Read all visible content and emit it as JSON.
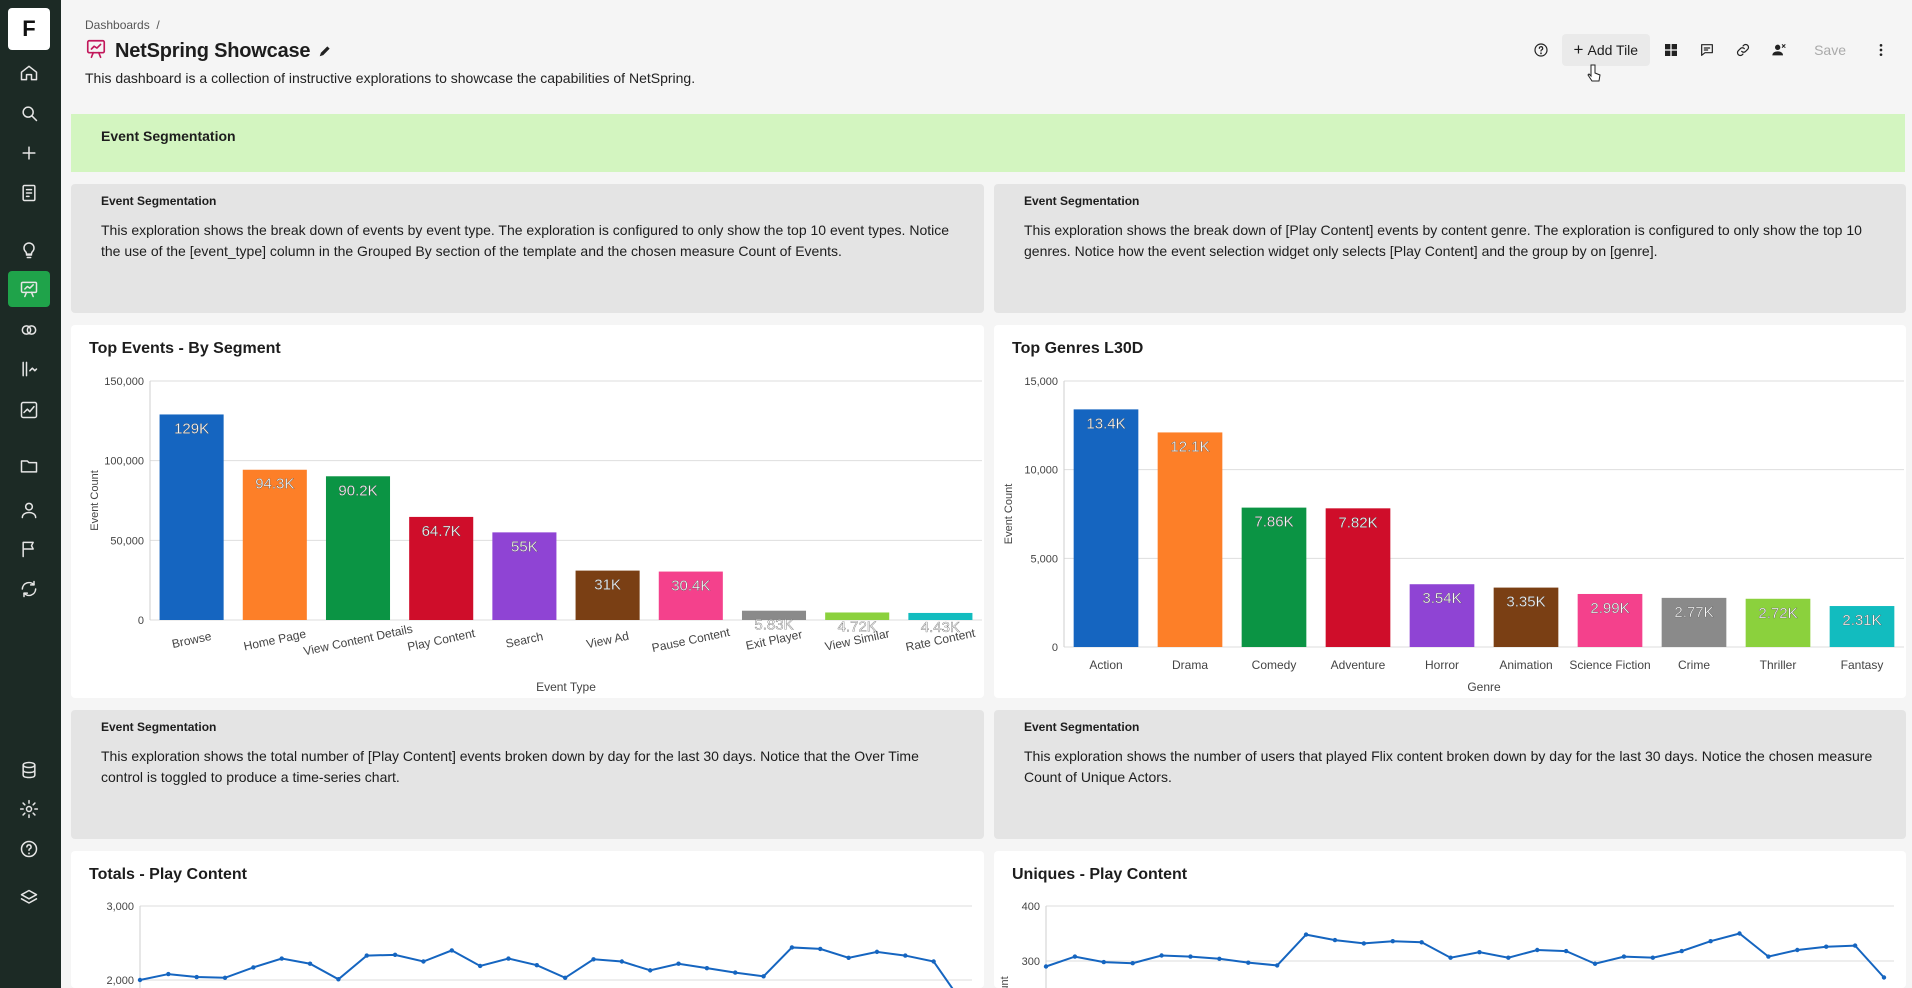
{
  "app": {
    "logo_letter": "F",
    "brand_color": "#1fa34a"
  },
  "sidebar": {
    "items": [
      {
        "icon": "home-icon"
      },
      {
        "icon": "search-icon"
      },
      {
        "icon": "plus-icon"
      },
      {
        "icon": "notebook-icon"
      },
      {
        "icon": "lightbulb-icon"
      },
      {
        "icon": "dashboard-icon",
        "active": true
      },
      {
        "icon": "rings-icon"
      },
      {
        "icon": "funnel-icon"
      },
      {
        "icon": "chart-line-icon"
      },
      {
        "icon": "folder-icon"
      },
      {
        "icon": "user-icon"
      },
      {
        "icon": "flag-icon"
      },
      {
        "icon": "workflow-icon"
      },
      {
        "icon": "database-icon"
      },
      {
        "icon": "gear-icon"
      },
      {
        "icon": "help-icon"
      },
      {
        "icon": "layers-icon"
      }
    ]
  },
  "breadcrumb": {
    "root": "Dashboards",
    "separator": "/"
  },
  "header": {
    "title": "NetSpring Showcase",
    "description": "This dashboard is a collection of instructive explorations to showcase the capabilities of NetSpring."
  },
  "toolbar": {
    "add_tile_label": "Add Tile",
    "save_label": "Save"
  },
  "section": {
    "title": "Event Segmentation"
  },
  "text_cards": [
    {
      "header": "Event Segmentation",
      "body": "This exploration shows the break down of events by event type. The exploration is configured to only show the top 10 event types. Notice the use of the [event_type] column in the Grouped By section of the template and the chosen measure Count of Events."
    },
    {
      "header": "Event Segmentation",
      "body": "This exploration shows the break down of [Play Content] events by content genre. The exploration is configured to only show the top 10 genres. Notice how the event selection widget only selects [Play Content] and the group by on [genre]."
    },
    {
      "header": "Event Segmentation",
      "body": "This exploration shows the total number of [Play Content] events broken down by day for the last 30 days. Notice that the Over Time control is toggled to produce a time-series chart."
    },
    {
      "header": "Event Segmentation",
      "body": "This exploration shows the number of users that played Flix content broken down by day for the last 30 days. Notice the chosen measure Count of Unique Actors."
    }
  ],
  "chart_data": [
    {
      "type": "bar",
      "title": "Top Events - By Segment",
      "xlabel": "Event Type",
      "ylabel": "Event Count",
      "ylim": [
        0,
        150000
      ],
      "yticks": [
        "0",
        "50,000",
        "100,000",
        "150,000"
      ],
      "categories": [
        "Browse",
        "Home Page",
        "View Content Details",
        "Play Content",
        "Search",
        "View Ad",
        "Pause Content",
        "Exit Player",
        "View Similar",
        "Rate Content"
      ],
      "values": [
        129000,
        94300,
        90200,
        64700,
        55000,
        31000,
        30400,
        5830,
        4720,
        4430
      ],
      "labels": [
        "129K",
        "94.3K",
        "90.2K",
        "64.7K",
        "55K",
        "31K",
        "30.4K",
        "5.83K",
        "4.72K",
        "4.43K"
      ],
      "colors": [
        "#1565c0",
        "#fd7f28",
        "#0b9444",
        "#cf0d2a",
        "#8f44d4",
        "#7a3f14",
        "#f4418c",
        "#8a8a8a",
        "#8bd13d",
        "#12bcbf"
      ],
      "grid": true
    },
    {
      "type": "bar",
      "title": "Top Genres L30D",
      "xlabel": "Genre",
      "ylabel": "Event Count",
      "ylim": [
        0,
        15000
      ],
      "yticks": [
        "0",
        "5,000",
        "10,000",
        "15,000"
      ],
      "categories": [
        "Action",
        "Drama",
        "Comedy",
        "Adventure",
        "Horror",
        "Animation",
        "Science Fiction",
        "Crime",
        "Thriller",
        "Fantasy"
      ],
      "values": [
        13400,
        12100,
        7860,
        7820,
        3540,
        3350,
        2990,
        2770,
        2720,
        2310
      ],
      "labels": [
        "13.4K",
        "12.1K",
        "7.86K",
        "7.82K",
        "3.54K",
        "3.35K",
        "2.99K",
        "2.77K",
        "2.72K",
        "2.31K"
      ],
      "colors": [
        "#1565c0",
        "#fd7f28",
        "#0b9444",
        "#cf0d2a",
        "#8f44d4",
        "#7a3f14",
        "#f4418c",
        "#8a8a8a",
        "#8bd13d",
        "#12bcbf"
      ],
      "grid": true
    },
    {
      "type": "line",
      "title": "Totals - Play Content",
      "yticks": [
        "3,000",
        "2,000"
      ],
      "ylim": [
        1700,
        3000
      ],
      "values": [
        2000,
        2080,
        2040,
        2030,
        2170,
        2290,
        2220,
        2010,
        2330,
        2340,
        2250,
        2400,
        2190,
        2290,
        2200,
        2030,
        2280,
        2250,
        2130,
        2220,
        2160,
        2100,
        2050,
        2440,
        2420,
        2300,
        2380,
        2330,
        2250,
        1700
      ],
      "color": "#1565c0"
    },
    {
      "type": "line",
      "title": "Uniques - Play Content",
      "ylabel": "Count",
      "yticks": [
        "400",
        "300"
      ],
      "ylim": [
        260,
        400
      ],
      "values": [
        290,
        308,
        298,
        296,
        310,
        308,
        304,
        297,
        292,
        348,
        338,
        332,
        336,
        334,
        306,
        316,
        306,
        320,
        318,
        295,
        308,
        306,
        318,
        336,
        350,
        308,
        320,
        326,
        328,
        270
      ],
      "color": "#1565c0"
    }
  ]
}
